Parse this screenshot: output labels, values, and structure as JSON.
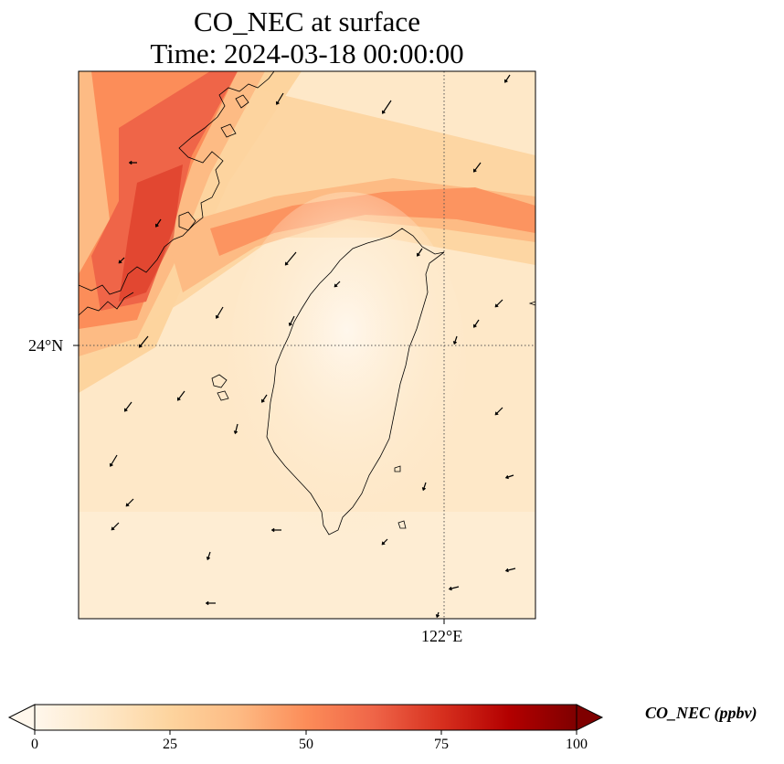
{
  "title": {
    "line1": "CO_NEC at surface",
    "line2": "Time: 2024-03-18 00:00:00"
  },
  "axes": {
    "lat_label": "24°N",
    "lon_label": "122°E"
  },
  "colorbar": {
    "label": "CO_NEC (ppbv)",
    "ticks": [
      "0",
      "25",
      "50",
      "75",
      "100"
    ],
    "range": [
      0,
      100
    ],
    "colormap": "OrRd",
    "colors": [
      "#fff7ec",
      "#fee8c8",
      "#fdd49e",
      "#fdbb84",
      "#fc8d59",
      "#ef6548",
      "#d7301f",
      "#b30000",
      "#7f0000"
    ]
  },
  "map": {
    "region": "Taiwan and Taiwan Strait",
    "gridlines": "dotted",
    "wind_vectors": true,
    "plume": "high CO band along southeast China coast and across northern Taiwan Strait"
  }
}
